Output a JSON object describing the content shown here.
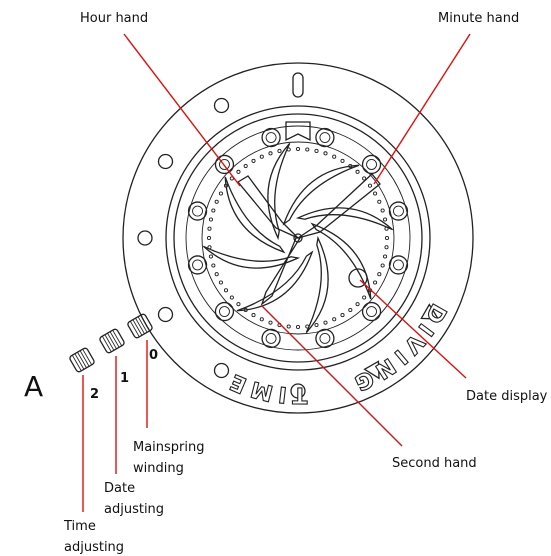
{
  "marker_letter": "A",
  "crown_numbers": [
    "0",
    "1",
    "2"
  ],
  "bezel_text": [
    "DIVING",
    "TIME"
  ],
  "labels": {
    "hour_hand": "Hour hand",
    "minute_hand": "Minute hand",
    "date_display": "Date display",
    "second_hand": "Second hand",
    "mainspring_winding": [
      "Mainspring",
      "winding"
    ],
    "date_adjusting": [
      "Date",
      "adjusting"
    ],
    "time_adjusting": [
      "Time",
      "adjusting"
    ]
  }
}
